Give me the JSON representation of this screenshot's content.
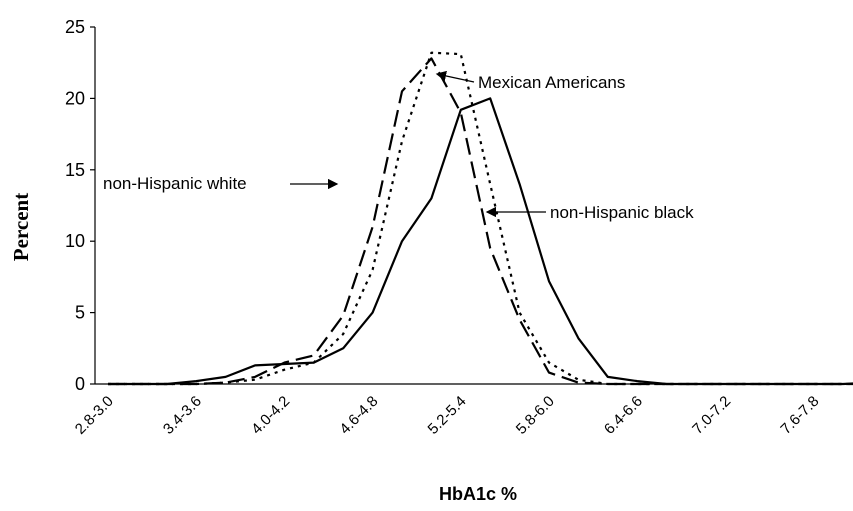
{
  "chart_data": {
    "type": "line",
    "title": "",
    "xlabel": "HbA1c %",
    "ylabel": "Percent",
    "ylim": [
      0,
      25
    ],
    "yticks": [
      0,
      5,
      10,
      15,
      20,
      25
    ],
    "grid": false,
    "legend": "none",
    "x": [
      "2.8-3.0",
      "3.0-3.2",
      "3.2-3.4",
      "3.4-3.6",
      "3.6-3.8",
      "3.8-4.0",
      "4.0-4.2",
      "4.2-4.4",
      "4.4-4.6",
      "4.6-4.8",
      "4.8-5.0",
      "5.0-5.2",
      "5.2-5.4",
      "5.4-5.6",
      "5.6-5.8",
      "5.8-6.0",
      "6.0-6.2",
      "6.2-6.4",
      "6.4-6.6",
      "6.6-6.8",
      "6.8-7.0",
      "7.0-7.2",
      "7.2-7.4",
      "7.4-7.6",
      "7.6-7.8",
      "7.8-8.0",
      "8.0-8.2"
    ],
    "tick_labels": [
      "2.8-3.0",
      "3.4-3.6",
      "4.0-4.2",
      "4.6-4.8",
      "5.2-5.4",
      "5.8-6.0",
      "6.4-6.6",
      "7.0-7.2",
      "7.6-7.8"
    ],
    "series": [
      {
        "name": "non-Hispanic white",
        "style": "dashed",
        "values": [
          0,
          0,
          0,
          0,
          0.1,
          0.5,
          1.5,
          2,
          4.8,
          11,
          20.5,
          22.8,
          19,
          9.5,
          4.5,
          0.8,
          0.1,
          0,
          0,
          0,
          0,
          0,
          0,
          0,
          0,
          0,
          0
        ]
      },
      {
        "name": "Mexican Americans",
        "style": "dotted",
        "values": [
          0,
          0,
          0,
          0,
          0.1,
          0.3,
          1,
          1.5,
          3.5,
          8,
          17,
          23.2,
          23.1,
          14,
          5,
          1.5,
          0.3,
          0,
          0,
          0,
          0,
          0,
          0,
          0,
          0,
          0,
          0
        ]
      },
      {
        "name": "non-Hispanic black",
        "style": "solid",
        "values": [
          0,
          0,
          0,
          0.2,
          0.5,
          1.3,
          1.4,
          1.5,
          2.5,
          5,
          10,
          13,
          19.2,
          20,
          14,
          7.2,
          3.2,
          0.5,
          0.2,
          0,
          0,
          0,
          0,
          0,
          0,
          0,
          0.1
        ]
      }
    ],
    "annotations": [
      {
        "text": "Mexican Americans",
        "series": "Mexican Americans"
      },
      {
        "text": "non-Hispanic white",
        "series": "non-Hispanic white"
      },
      {
        "text": "non-Hispanic black",
        "series": "non-Hispanic black"
      }
    ]
  }
}
